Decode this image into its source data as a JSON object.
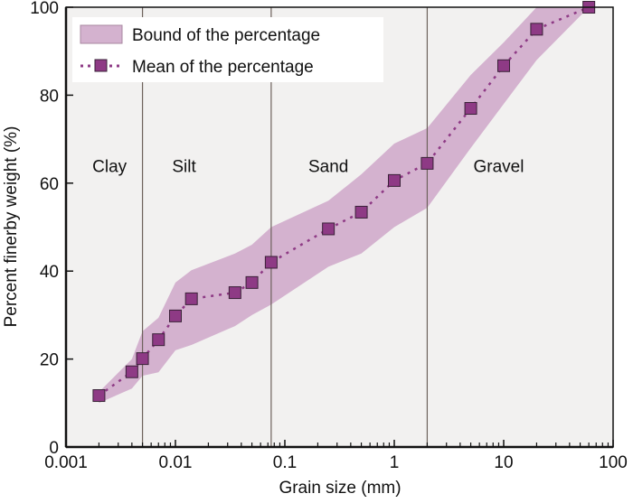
{
  "chart_data": {
    "type": "line",
    "title": "",
    "xlabel": "Grain size (mm)",
    "ylabel": "Percent finerby weight (%)",
    "xscale": "log",
    "xlim": [
      0.001,
      100
    ],
    "ylim": [
      0,
      100
    ],
    "xticks": [
      0.001,
      0.01,
      0.1,
      1,
      10,
      100
    ],
    "xtick_labels": [
      "0.001",
      "0.01",
      "0.1",
      "1",
      "10",
      "100"
    ],
    "yticks": [
      0,
      20,
      40,
      60,
      80,
      100
    ],
    "ytick_labels": [
      "0",
      "20",
      "40",
      "60",
      "80",
      "100"
    ],
    "x": [
      0.002,
      0.004,
      0.005,
      0.007,
      0.01,
      0.014,
      0.035,
      0.05,
      0.075,
      0.25,
      0.5,
      1,
      2,
      5,
      10,
      20,
      60
    ],
    "series": [
      {
        "name": "Mean of the percentage",
        "values": [
          11.7,
          17.1,
          20.1,
          24.4,
          29.8,
          33.7,
          35.1,
          37.4,
          42.0,
          49.6,
          53.4,
          60.6,
          64.5,
          77.0,
          86.7,
          95.0,
          100.0
        ]
      },
      {
        "name": "Bound of the percentage (upper)",
        "values": [
          12.5,
          20.0,
          26.3,
          29.4,
          37.4,
          40.2,
          44.0,
          46.0,
          50.0,
          56.0,
          62.0,
          69.0,
          72.5,
          84.6,
          92.0,
          100.0,
          100.0
        ]
      },
      {
        "name": "Bound of the percentage (lower)",
        "values": [
          10.0,
          13.3,
          16.2,
          17.0,
          22.0,
          23.2,
          27.5,
          30.0,
          32.4,
          41.0,
          44.0,
          50.0,
          54.4,
          68.0,
          78.0,
          88.0,
          100.0
        ]
      }
    ],
    "legend": {
      "position": "top-left",
      "entries": [
        "Bound of the percentage",
        "Mean of the percentage"
      ]
    },
    "dividers": [
      0.005,
      0.075,
      2
    ],
    "regions": [
      {
        "label": "Clay",
        "x": 0.0025
      },
      {
        "label": "Silt",
        "x": 0.012
      },
      {
        "label": "Sand",
        "x": 0.25
      },
      {
        "label": "Gravel",
        "x": 9
      }
    ],
    "region_label_y": 64,
    "grid": false,
    "colors": {
      "band": "#d4b2cf",
      "marker": "#8e3a85",
      "line": "#8e3a85",
      "background": "#f2f1f0"
    }
  }
}
